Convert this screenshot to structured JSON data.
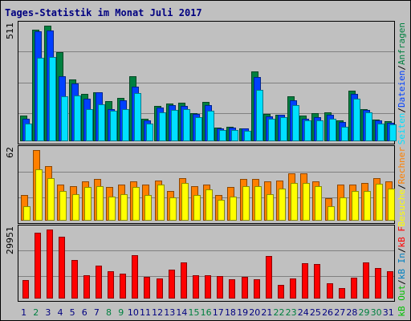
{
  "page": {
    "title": "Tages-Statistik im Monat Juli 2017"
  },
  "colors": {
    "background": "#c0c0c0",
    "title": "#000080",
    "hits": "#008040",
    "files": "#0040ff",
    "pages": "#00e0ff",
    "visits": "#ffff00",
    "sites": "#ff8000",
    "kbin": "#0080c0",
    "kbout": "#00c000",
    "kbf": "#ff0000",
    "weekend": "#008040",
    "weekday": "#000080"
  },
  "chart_data": [
    {
      "type": "bar",
      "title": "Tages-Statistik im Monat Juli 2017",
      "ylim": [
        0,
        511
      ],
      "max_label": "511",
      "categories": [
        "1",
        "2",
        "3",
        "4",
        "5",
        "6",
        "7",
        "8",
        "9",
        "10",
        "11",
        "12",
        "13",
        "14",
        "15",
        "16",
        "17",
        "18",
        "19",
        "20",
        "21",
        "22",
        "23",
        "24",
        "25",
        "26",
        "27",
        "28",
        "29",
        "30",
        "31"
      ],
      "weekend_days": [
        "2",
        "8",
        "9",
        "15",
        "16",
        "22",
        "23",
        "29",
        "30"
      ],
      "legend": [
        "Anfragen",
        "/",
        "Dateien",
        "/",
        "Seiten"
      ],
      "series": [
        {
          "name": "Anfragen",
          "color": "#008040",
          "values": [
            111,
            492,
            511,
            392,
            272,
            207,
            215,
            175,
            190,
            286,
            96,
            155,
            165,
            168,
            122,
            170,
            58,
            60,
            55,
            308,
            117,
            116,
            195,
            110,
            121,
            125,
            91,
            223,
            141,
            94,
            87
          ]
        },
        {
          "name": "Dateien",
          "color": "#0040ff",
          "values": [
            95,
            485,
            491,
            287,
            255,
            185,
            215,
            140,
            178,
            238,
            90,
            148,
            158,
            155,
            117,
            157,
            53,
            56,
            53,
            281,
            108,
            113,
            178,
            98,
            103,
            116,
            82,
            206,
            137,
            88,
            77
          ]
        },
        {
          "name": "Seiten",
          "color": "#00e0ff",
          "values": [
            75,
            368,
            373,
            197,
            199,
            138,
            161,
            132,
            139,
            210,
            76,
            124,
            135,
            139,
            103,
            134,
            46,
            46,
            44,
            224,
            96,
            103,
            159,
            89,
            91,
            98,
            60,
            187,
            124,
            76,
            71
          ]
        }
      ]
    },
    {
      "type": "bar",
      "ylim": [
        0,
        62
      ],
      "max_label": "62",
      "categories": [
        "1",
        "2",
        "3",
        "4",
        "5",
        "6",
        "7",
        "8",
        "9",
        "10",
        "11",
        "12",
        "13",
        "14",
        "15",
        "16",
        "17",
        "18",
        "19",
        "20",
        "21",
        "22",
        "23",
        "24",
        "25",
        "26",
        "27",
        "28",
        "29",
        "30",
        "31"
      ],
      "legend": [
        "Rechner",
        "/",
        "Besuche"
      ],
      "series": [
        {
          "name": "Rechner",
          "color": "#ff8000",
          "values": [
            22,
            62,
            48,
            31,
            30,
            34,
            36,
            29,
            31,
            34,
            31,
            35,
            26,
            37,
            30,
            31,
            22,
            29,
            36,
            36,
            34,
            35,
            41,
            41,
            34,
            19,
            31,
            31,
            33,
            37,
            34
          ]
        },
        {
          "name": "Besuche",
          "color": "#ffff00",
          "values": [
            12,
            45,
            37,
            26,
            23,
            29,
            30,
            21,
            23,
            29,
            22,
            31,
            20,
            33,
            22,
            27,
            18,
            21,
            30,
            30,
            23,
            28,
            33,
            33,
            30,
            12,
            20,
            26,
            26,
            32,
            28
          ]
        }
      ]
    },
    {
      "type": "bar",
      "ylim": [
        0,
        29951
      ],
      "max_label": "29951",
      "categories": [
        "1",
        "2",
        "3",
        "4",
        "5",
        "6",
        "7",
        "8",
        "9",
        "10",
        "11",
        "12",
        "13",
        "14",
        "15",
        "16",
        "17",
        "18",
        "19",
        "20",
        "21",
        "22",
        "23",
        "24",
        "25",
        "26",
        "27",
        "28",
        "29",
        "30",
        "31"
      ],
      "legend": [
        "kB F",
        "/",
        "kB In",
        "/",
        "kB Out"
      ],
      "series": [
        {
          "name": "kB F",
          "color": "#ff0000",
          "values": [
            7600,
            28700,
            29951,
            26700,
            16700,
            9900,
            14200,
            11800,
            10500,
            18700,
            9300,
            8600,
            12200,
            15600,
            9900,
            9700,
            9500,
            8000,
            9300,
            8100,
            18300,
            5600,
            8600,
            15000,
            14700,
            6500,
            4400,
            8900,
            15400,
            13100,
            11800
          ]
        }
      ]
    }
  ]
}
